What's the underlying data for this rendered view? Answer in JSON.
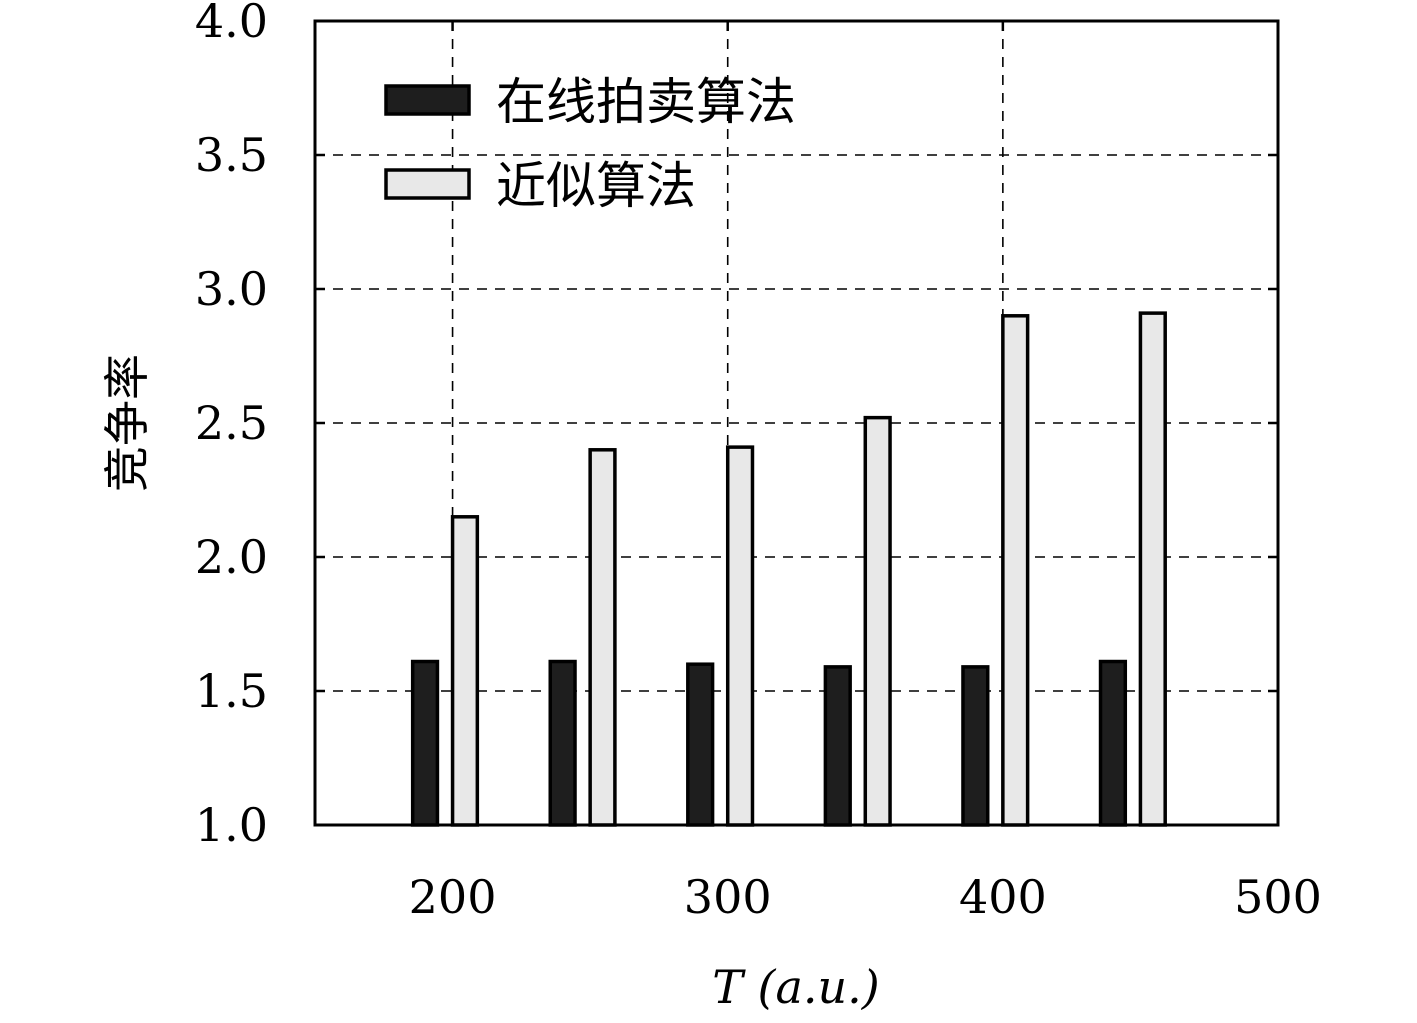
{
  "chart_data": {
    "type": "bar",
    "title": "",
    "xlabel": "T (a.u.)",
    "ylabel": "竞争率",
    "x_tick_labels": [
      "200",
      "300",
      "400",
      "500"
    ],
    "x_tick_values": [
      200,
      300,
      400,
      500
    ],
    "xlim": [
      150,
      500
    ],
    "ylim": [
      1.0,
      4.0
    ],
    "y_tick_labels": [
      "1.0",
      "1.5",
      "2.0",
      "2.5",
      "3.0",
      "3.5",
      "4.0"
    ],
    "y_tick_values": [
      1.0,
      1.5,
      2.0,
      2.5,
      3.0,
      3.5,
      4.0
    ],
    "grid": true,
    "legend_position": "top-left",
    "group_x": [
      200,
      250,
      300,
      350,
      400,
      450
    ],
    "series": [
      {
        "name": "在线拍卖算法",
        "color": "#1e1e1e",
        "values": [
          1.61,
          1.61,
          1.6,
          1.59,
          1.59,
          1.61
        ]
      },
      {
        "name": "近似算法",
        "color": "#e8e8e8",
        "values": [
          2.15,
          2.4,
          2.41,
          2.52,
          2.9,
          2.91
        ]
      }
    ]
  }
}
